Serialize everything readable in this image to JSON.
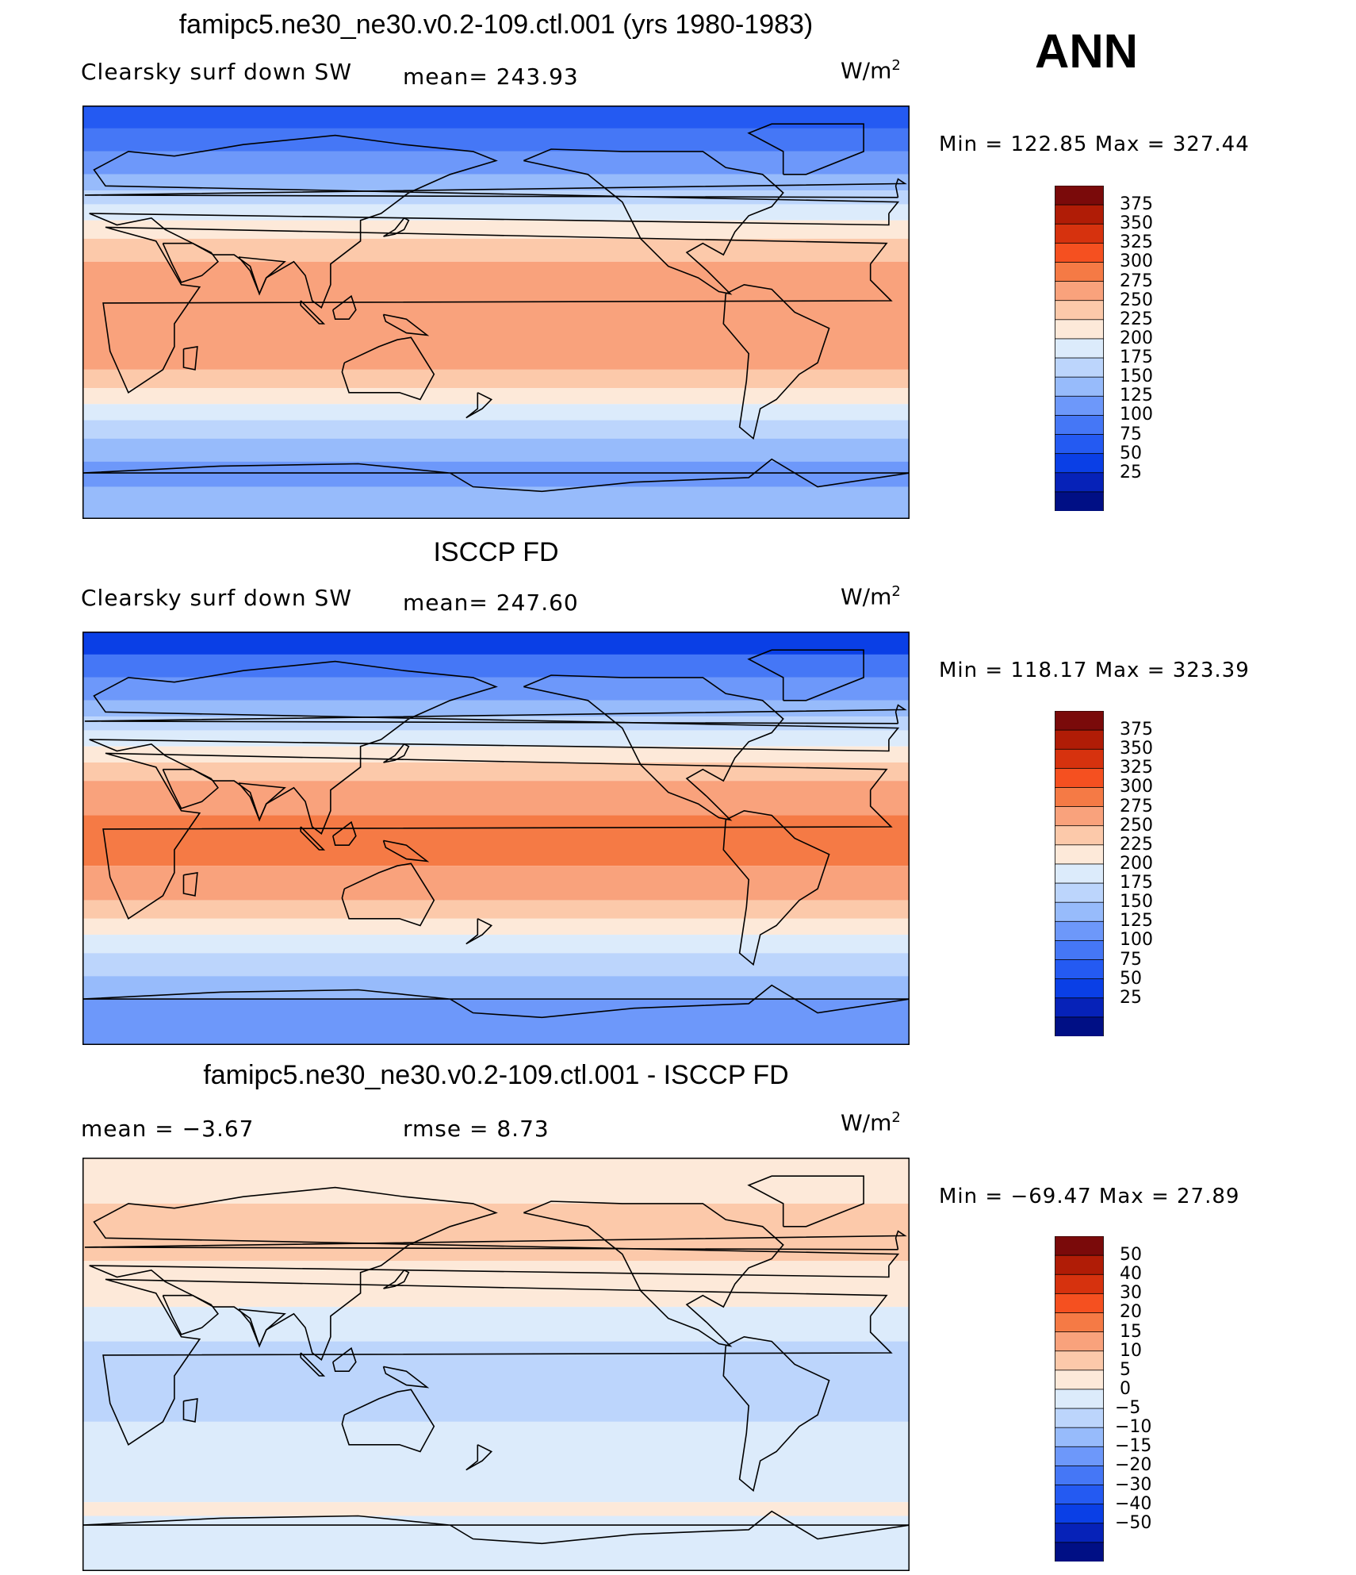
{
  "season": "ANN",
  "panels": [
    {
      "title": "famipc5.ne30_ne30.v0.2-109.ctl.001 (yrs 1980-1983)",
      "left_label": "Clearsky  surf  down  SW",
      "mid_label": "mean=  243.93",
      "units": "W/m",
      "units_sup": "2",
      "minmax": "Min  =  122.85  Max  =  327.44",
      "colorbar_labels": [
        "375",
        "350",
        "325",
        "300",
        "275",
        "250",
        "225",
        "200",
        "175",
        "150",
        "125",
        "100",
        "75",
        "50",
        "25"
      ],
      "colors": [
        "#7a0a0a",
        "#b01c06",
        "#d6320e",
        "#f55020",
        "#f57a45",
        "#f9a27c",
        "#fcc9aa",
        "#fde9d9",
        "#dcebfb",
        "#bcd5fc",
        "#97bbfb",
        "#6d98fa",
        "#4577f6",
        "#245af2",
        "#0a3fe6",
        "#0622b8",
        "#000f85"
      ],
      "bands": [
        {
          "lat": 90,
          "c": 13
        },
        {
          "lat": 80,
          "c": 12
        },
        {
          "lat": 70,
          "c": 11
        },
        {
          "lat": 60,
          "c": 10
        },
        {
          "lat": 53,
          "c": 9
        },
        {
          "lat": 47,
          "c": 8
        },
        {
          "lat": 40,
          "c": 7
        },
        {
          "lat": 32,
          "c": 6
        },
        {
          "lat": 22,
          "c": 5
        },
        {
          "lat": -25,
          "c": 6
        },
        {
          "lat": -33,
          "c": 7
        },
        {
          "lat": -40,
          "c": 8
        },
        {
          "lat": -47,
          "c": 9
        },
        {
          "lat": -55,
          "c": 10
        },
        {
          "lat": -65,
          "c": 11
        },
        {
          "lat": -76,
          "c": 10
        }
      ]
    },
    {
      "title": "ISCCP FD",
      "left_label": "Clearsky  surf  down  SW",
      "mid_label": "mean=  247.60",
      "units": "W/m",
      "units_sup": "2",
      "minmax": "Min  =  118.17  Max  =  323.39",
      "colorbar_labels": [
        "375",
        "350",
        "325",
        "300",
        "275",
        "250",
        "225",
        "200",
        "175",
        "150",
        "125",
        "100",
        "75",
        "50",
        "25"
      ],
      "colors": [
        "#7a0a0a",
        "#b01c06",
        "#d6320e",
        "#f55020",
        "#f57a45",
        "#f9a27c",
        "#fcc9aa",
        "#fde9d9",
        "#dcebfb",
        "#bcd5fc",
        "#97bbfb",
        "#6d98fa",
        "#4577f6",
        "#245af2",
        "#0a3fe6",
        "#0622b8",
        "#000f85"
      ],
      "bands": [
        {
          "lat": 90,
          "c": 14
        },
        {
          "lat": 80,
          "c": 12
        },
        {
          "lat": 70,
          "c": 11
        },
        {
          "lat": 60,
          "c": 10
        },
        {
          "lat": 53,
          "c": 9
        },
        {
          "lat": 47,
          "c": 8
        },
        {
          "lat": 40,
          "c": 7
        },
        {
          "lat": 33,
          "c": 6
        },
        {
          "lat": 25,
          "c": 5
        },
        {
          "lat": 10,
          "c": 4
        },
        {
          "lat": -12,
          "c": 5
        },
        {
          "lat": -27,
          "c": 6
        },
        {
          "lat": -35,
          "c": 7
        },
        {
          "lat": -42,
          "c": 8
        },
        {
          "lat": -50,
          "c": 9
        },
        {
          "lat": -60,
          "c": 10
        },
        {
          "lat": -70,
          "c": 11
        }
      ]
    },
    {
      "title": "famipc5.ne30_ne30.v0.2-109.ctl.001 - ISCCP FD",
      "left_label": "mean  =     −3.67",
      "mid_label": "rmse  =      8.73",
      "units": "W/m",
      "units_sup": "2",
      "minmax": "Min  =  −69.47  Max  =    27.89",
      "colorbar_labels": [
        "50",
        "40",
        "30",
        "20",
        "15",
        "10",
        "5",
        "0",
        "−5",
        "−10",
        "−15",
        "−20",
        "−30",
        "−40",
        "−50"
      ],
      "colors": [
        "#7a0a0a",
        "#b01c06",
        "#d6320e",
        "#f55020",
        "#f57a45",
        "#f9a27c",
        "#fcc9aa",
        "#fde9d9",
        "#dcebfb",
        "#bcd5fc",
        "#97bbfb",
        "#6d98fa",
        "#4577f6",
        "#245af2",
        "#0a3fe6",
        "#0622b8",
        "#000f85"
      ],
      "bands": [
        {
          "lat": 90,
          "c": 7
        },
        {
          "lat": 70,
          "c": 6
        },
        {
          "lat": 45,
          "c": 7
        },
        {
          "lat": 25,
          "c": 8
        },
        {
          "lat": 10,
          "c": 9
        },
        {
          "lat": -25,
          "c": 8
        },
        {
          "lat": -60,
          "c": 7
        },
        {
          "lat": -66,
          "c": 8
        }
      ]
    }
  ],
  "chart_data": [
    {
      "type": "heatmap",
      "title": "famipc5.ne30_ne30.v0.2-109.ctl.001 (yrs 1980-1983)",
      "variable": "Clearsky surf down SW",
      "units": "W/m2",
      "mean": 243.93,
      "min": 122.85,
      "max": 327.44,
      "levels": [
        25,
        50,
        75,
        100,
        125,
        150,
        175,
        200,
        225,
        250,
        275,
        300,
        325,
        350,
        375
      ],
      "xlim": [
        0,
        360
      ],
      "ylim": [
        -90,
        90
      ]
    },
    {
      "type": "heatmap",
      "title": "ISCCP FD",
      "variable": "Clearsky surf down SW",
      "units": "W/m2",
      "mean": 247.6,
      "min": 118.17,
      "max": 323.39,
      "levels": [
        25,
        50,
        75,
        100,
        125,
        150,
        175,
        200,
        225,
        250,
        275,
        300,
        325,
        350,
        375
      ],
      "xlim": [
        0,
        360
      ],
      "ylim": [
        -90,
        90
      ]
    },
    {
      "type": "heatmap",
      "title": "famipc5.ne30_ne30.v0.2-109.ctl.001 - ISCCP FD",
      "units": "W/m2",
      "mean": -3.67,
      "rmse": 8.73,
      "min": -69.47,
      "max": 27.89,
      "levels": [
        -50,
        -40,
        -30,
        -20,
        -15,
        -10,
        -5,
        0,
        5,
        10,
        15,
        20,
        30,
        40,
        50
      ],
      "xlim": [
        0,
        360
      ],
      "ylim": [
        -90,
        90
      ]
    }
  ]
}
